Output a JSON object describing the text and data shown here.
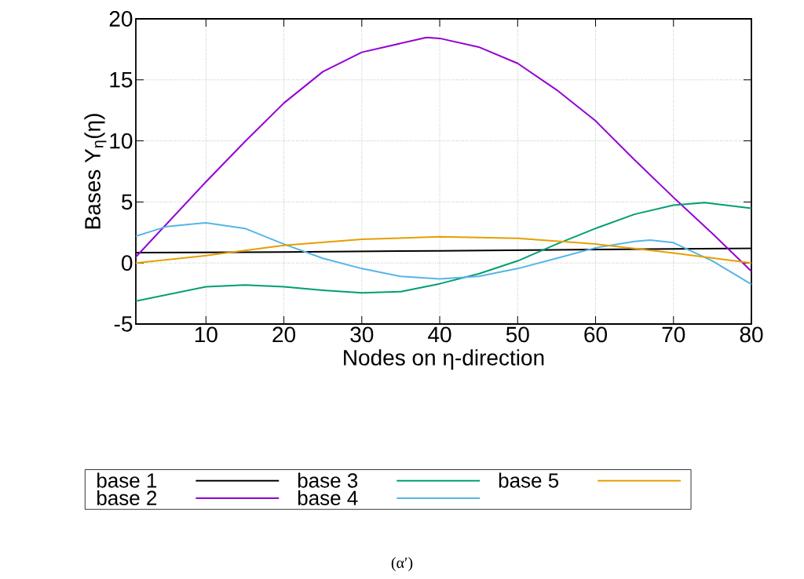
{
  "chart_data": {
    "type": "line",
    "xlabel": "Nodes on η-direction",
    "ylabel": "Bases Y$_{η}$(η)",
    "annotations": [
      "(α′)"
    ],
    "xlim": [
      1,
      80
    ],
    "ylim": [
      -5,
      20
    ],
    "xticks": [
      10,
      20,
      30,
      40,
      50,
      60,
      70,
      80
    ],
    "yticks": [
      -5,
      0,
      5,
      10,
      15,
      20
    ],
    "grid": true,
    "legend": "bottom",
    "line_style": "solid",
    "marker": "none",
    "series": [
      {
        "name": "base 1",
        "color": "#000000",
        "x": [
          1,
          20,
          40,
          60,
          80
        ],
        "values": [
          0.85,
          0.9,
          1.0,
          1.1,
          1.2
        ]
      },
      {
        "name": "base 2",
        "color": "#9400d3",
        "x": [
          1,
          10,
          15,
          20,
          25,
          30,
          38.3,
          40,
          45,
          50,
          55,
          60,
          65,
          70,
          75,
          80
        ],
        "values": [
          0.49,
          6.65,
          9.94,
          13.1,
          15.67,
          17.26,
          18.47,
          18.4,
          17.69,
          16.35,
          14.18,
          11.64,
          8.45,
          5.37,
          2.4,
          -0.68
        ]
      },
      {
        "name": "base 3",
        "color": "#009e73",
        "x": [
          1,
          10,
          15,
          20,
          25,
          30,
          35,
          40,
          45,
          50,
          55,
          60,
          65,
          70,
          74,
          80
        ],
        "values": [
          -3.12,
          -1.95,
          -1.8,
          -1.95,
          -2.23,
          -2.44,
          -2.35,
          -1.7,
          -0.89,
          0.17,
          1.55,
          2.83,
          3.99,
          4.74,
          4.95,
          4.48
        ]
      },
      {
        "name": "base 4",
        "color": "#56b4e9",
        "x": [
          1,
          5,
          10,
          15,
          20,
          25,
          30,
          35,
          40,
          45,
          50,
          55,
          60,
          65,
          67,
          70,
          75,
          80
        ],
        "values": [
          2.19,
          2.99,
          3.29,
          2.83,
          1.55,
          0.38,
          -0.46,
          -1.1,
          -1.31,
          -1.1,
          -0.46,
          0.38,
          1.24,
          1.76,
          1.87,
          1.66,
          0.17,
          -1.74
        ]
      },
      {
        "name": "base 5",
        "color": "#e69f00",
        "x": [
          1,
          10,
          20,
          30,
          40,
          50,
          60,
          70,
          80
        ],
        "values": [
          0,
          0.6,
          1.45,
          1.94,
          2.15,
          2.02,
          1.55,
          0.81,
          0
        ]
      }
    ]
  }
}
